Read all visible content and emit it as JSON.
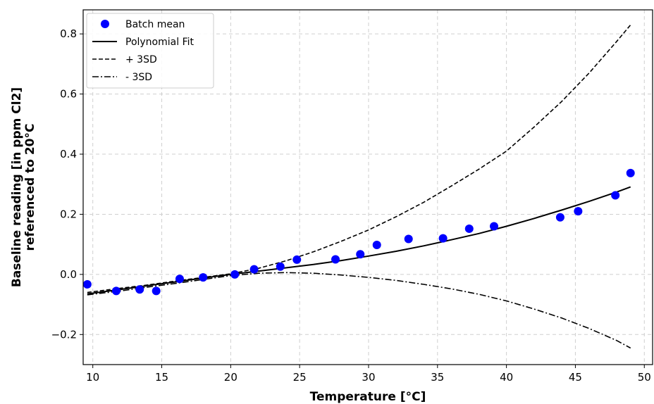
{
  "chart_data": {
    "type": "line",
    "title": "",
    "xlabel": "Temperature [°C]",
    "ylabel_line1": "Baseline reading [in ppm Cl2]",
    "ylabel_line2": "referenced to 20°C",
    "xlim": [
      9.3,
      50.6
    ],
    "ylim": [
      -0.3,
      0.88
    ],
    "xticks": [
      10,
      15,
      20,
      25,
      30,
      35,
      40,
      45,
      50
    ],
    "yticks": [
      -0.2,
      0.0,
      0.2,
      0.4,
      0.6,
      0.8
    ],
    "xtick_labels": [
      "10",
      "15",
      "20",
      "25",
      "30",
      "35",
      "40",
      "45",
      "50"
    ],
    "ytick_labels": [
      "−0.2",
      "0.0",
      "0.2",
      "0.4",
      "0.6",
      "0.8"
    ],
    "grid": true,
    "legend_position": "top-left",
    "scatter": {
      "name": "Batch mean",
      "color": "#0000ff",
      "x": [
        9.6,
        11.7,
        13.4,
        14.6,
        16.3,
        18.0,
        20.3,
        21.7,
        23.6,
        24.8,
        27.6,
        29.4,
        30.6,
        32.9,
        35.4,
        37.3,
        39.1,
        43.9,
        45.2,
        47.9,
        49.0
      ],
      "y": [
        -0.033,
        -0.055,
        -0.05,
        -0.055,
        -0.015,
        -0.01,
        0.0,
        0.017,
        0.026,
        0.049,
        0.05,
        0.067,
        0.098,
        0.118,
        0.12,
        0.152,
        0.16,
        0.19,
        0.21,
        0.263,
        0.337
      ]
    },
    "series": [
      {
        "name": "Polynomial Fit",
        "style": "solid",
        "color": "#000000",
        "x": [
          9.6,
          12,
          14,
          16,
          18,
          20,
          22,
          24,
          26,
          28,
          30,
          32,
          34,
          36,
          38,
          40,
          42,
          44,
          46,
          48,
          49
        ],
        "y": [
          -0.065,
          -0.05,
          -0.037,
          -0.025,
          -0.012,
          0.0,
          0.011,
          0.022,
          0.033,
          0.046,
          0.061,
          0.077,
          0.095,
          0.115,
          0.136,
          0.16,
          0.186,
          0.214,
          0.243,
          0.274,
          0.291
        ]
      },
      {
        "name": "+ 3SD",
        "style": "dashed",
        "color": "#000000",
        "x": [
          9.6,
          12,
          14,
          16,
          18,
          20,
          22,
          24,
          26,
          28,
          30,
          32,
          34,
          36,
          38,
          40,
          42,
          44,
          46,
          48,
          49
        ],
        "y": [
          -0.06,
          -0.046,
          -0.035,
          -0.022,
          -0.01,
          0.002,
          0.02,
          0.045,
          0.075,
          0.11,
          0.148,
          0.192,
          0.24,
          0.294,
          0.35,
          0.41,
          0.49,
          0.575,
          0.67,
          0.775,
          0.83
        ]
      },
      {
        "name": "- 3SD",
        "style": "dashdot",
        "color": "#000000",
        "x": [
          9.6,
          12,
          14,
          16,
          18,
          20,
          22,
          24,
          26,
          28,
          30,
          32,
          34,
          36,
          38,
          40,
          42,
          44,
          46,
          48,
          49
        ],
        "y": [
          -0.068,
          -0.055,
          -0.042,
          -0.03,
          -0.017,
          -0.004,
          0.004,
          0.006,
          0.004,
          -0.002,
          -0.01,
          -0.02,
          -0.033,
          -0.048,
          -0.066,
          -0.088,
          -0.115,
          -0.145,
          -0.18,
          -0.22,
          -0.245
        ]
      }
    ]
  }
}
